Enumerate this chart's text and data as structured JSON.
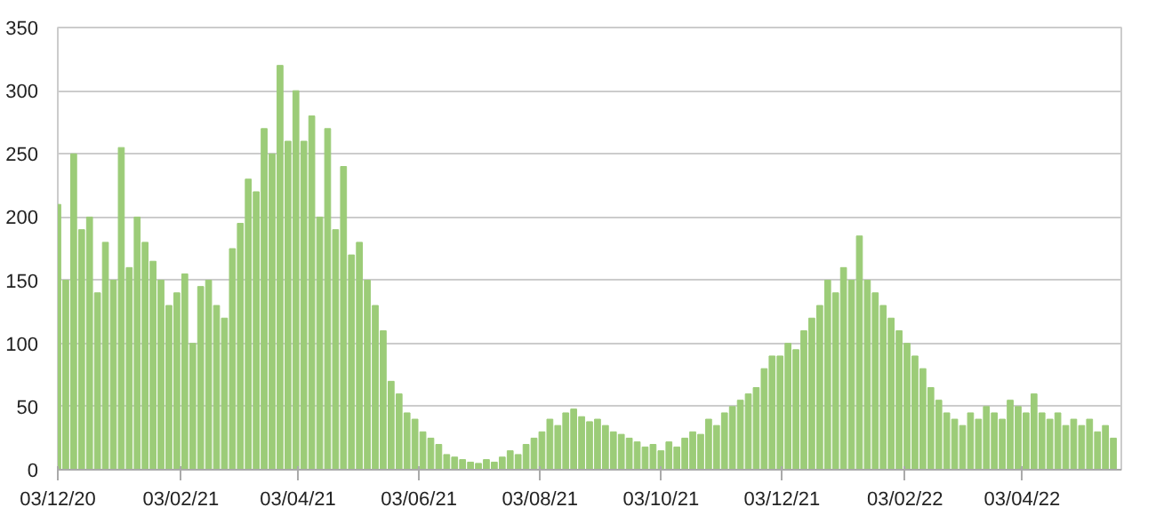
{
  "chart_data": {
    "type": "bar",
    "color": "#9ccc78",
    "grid": "y",
    "ylim": [
      0,
      350
    ],
    "yticks": [
      0,
      50,
      100,
      150,
      200,
      250,
      300,
      350
    ],
    "xlim": [
      "2020-12-03",
      "2022-05-23"
    ],
    "xticks": [
      {
        "value": "2020-12-03",
        "label": "03/12/20"
      },
      {
        "value": "2021-02-03",
        "label": "03/02/21"
      },
      {
        "value": "2021-04-03",
        "label": "03/04/21"
      },
      {
        "value": "2021-06-03",
        "label": "03/06/21"
      },
      {
        "value": "2021-08-03",
        "label": "03/08/21"
      },
      {
        "value": "2021-10-03",
        "label": "03/10/21"
      },
      {
        "value": "2021-12-03",
        "label": "03/12/21"
      },
      {
        "value": "2022-02-03",
        "label": "03/02/22"
      },
      {
        "value": "2022-04-03",
        "label": "03/04/22"
      }
    ],
    "x": [
      "2020-12-03",
      "2020-12-07",
      "2020-12-11",
      "2020-12-15",
      "2020-12-19",
      "2020-12-23",
      "2020-12-27",
      "2020-12-31",
      "2021-01-04",
      "2021-01-08",
      "2021-01-12",
      "2021-01-16",
      "2021-01-20",
      "2021-01-24",
      "2021-01-28",
      "2021-02-01",
      "2021-02-05",
      "2021-02-09",
      "2021-02-13",
      "2021-02-17",
      "2021-02-21",
      "2021-02-25",
      "2021-03-01",
      "2021-03-05",
      "2021-03-09",
      "2021-03-13",
      "2021-03-17",
      "2021-03-21",
      "2021-03-25",
      "2021-03-29",
      "2021-04-02",
      "2021-04-06",
      "2021-04-10",
      "2021-04-14",
      "2021-04-18",
      "2021-04-22",
      "2021-04-26",
      "2021-04-30",
      "2021-05-04",
      "2021-05-08",
      "2021-05-12",
      "2021-05-16",
      "2021-05-20",
      "2021-05-24",
      "2021-05-28",
      "2021-06-01",
      "2021-06-05",
      "2021-06-09",
      "2021-06-13",
      "2021-06-17",
      "2021-06-21",
      "2021-06-25",
      "2021-06-29",
      "2021-07-03",
      "2021-07-07",
      "2021-07-11",
      "2021-07-15",
      "2021-07-19",
      "2021-07-23",
      "2021-07-27",
      "2021-07-31",
      "2021-08-04",
      "2021-08-08",
      "2021-08-12",
      "2021-08-16",
      "2021-08-20",
      "2021-08-24",
      "2021-08-28",
      "2021-09-01",
      "2021-09-05",
      "2021-09-09",
      "2021-09-13",
      "2021-09-17",
      "2021-09-21",
      "2021-09-25",
      "2021-09-29",
      "2021-10-03",
      "2021-10-07",
      "2021-10-11",
      "2021-10-15",
      "2021-10-19",
      "2021-10-23",
      "2021-10-27",
      "2021-10-31",
      "2021-11-04",
      "2021-11-08",
      "2021-11-12",
      "2021-11-16",
      "2021-11-20",
      "2021-11-24",
      "2021-11-28",
      "2021-12-02",
      "2021-12-06",
      "2021-12-10",
      "2021-12-14",
      "2021-12-18",
      "2021-12-22",
      "2021-12-26",
      "2021-12-30",
      "2022-01-03",
      "2022-01-07",
      "2022-01-11",
      "2022-01-15",
      "2022-01-19",
      "2022-01-23",
      "2022-01-27",
      "2022-01-31",
      "2022-02-04",
      "2022-02-08",
      "2022-02-12",
      "2022-02-16",
      "2022-02-20",
      "2022-02-24",
      "2022-02-28",
      "2022-03-04",
      "2022-03-08",
      "2022-03-12",
      "2022-03-16",
      "2022-03-20",
      "2022-03-24",
      "2022-03-28",
      "2022-04-01",
      "2022-04-05",
      "2022-04-09",
      "2022-04-13",
      "2022-04-17",
      "2022-04-21",
      "2022-04-25",
      "2022-04-29",
      "2022-05-03",
      "2022-05-07",
      "2022-05-11",
      "2022-05-15",
      "2022-05-19"
    ],
    "values": [
      210,
      150,
      250,
      190,
      200,
      140,
      180,
      150,
      255,
      160,
      200,
      180,
      165,
      150,
      130,
      140,
      155,
      100,
      145,
      150,
      130,
      120,
      175,
      195,
      230,
      220,
      270,
      250,
      320,
      260,
      300,
      260,
      280,
      200,
      270,
      190,
      240,
      170,
      180,
      150,
      130,
      110,
      70,
      60,
      45,
      40,
      30,
      25,
      20,
      12,
      10,
      8,
      6,
      5,
      8,
      6,
      10,
      15,
      12,
      20,
      25,
      30,
      40,
      35,
      45,
      48,
      42,
      38,
      40,
      35,
      30,
      28,
      25,
      22,
      18,
      20,
      15,
      22,
      18,
      25,
      30,
      28,
      40,
      35,
      45,
      50,
      55,
      60,
      65,
      80,
      90,
      90,
      100,
      95,
      110,
      120,
      130,
      150,
      140,
      160,
      150,
      185,
      150,
      140,
      130,
      120,
      110,
      100,
      90,
      80,
      65,
      55,
      45,
      40,
      35,
      45,
      40,
      50,
      45,
      40,
      55,
      50,
      45,
      60,
      45,
      40,
      45,
      35,
      40,
      35,
      40,
      30,
      35,
      25
    ]
  }
}
